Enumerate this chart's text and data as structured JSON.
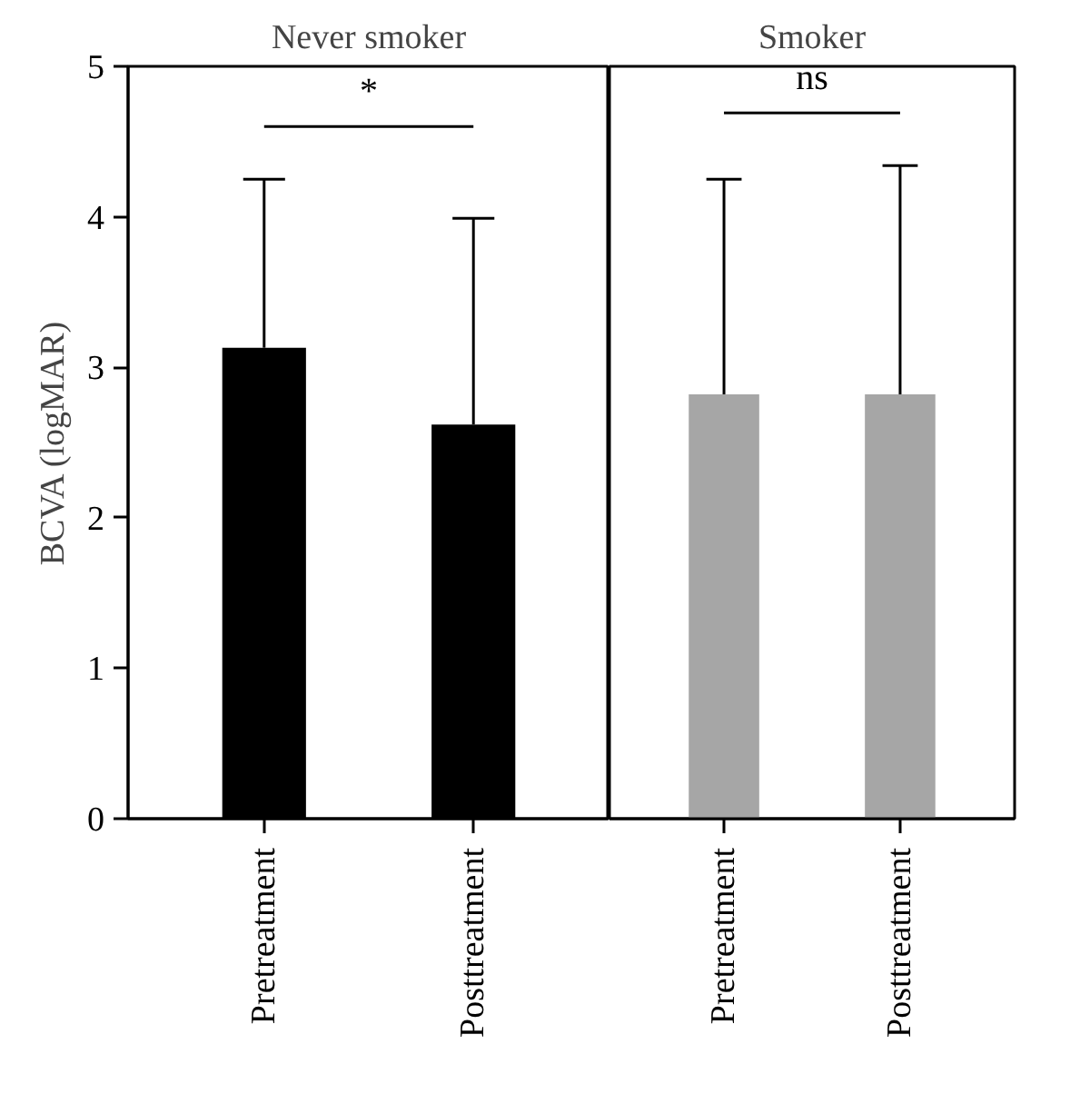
{
  "chart_data": [
    {
      "type": "bar",
      "title": "Never smoker",
      "ylabel": "BCVA (logMAR)",
      "categories": [
        "Pretreatment",
        "Posttreatment"
      ],
      "values": [
        3.13,
        2.62
      ],
      "color": "#000000",
      "errors": [
        [
          3.13,
          4.25
        ],
        [
          2.62,
          3.99
        ]
      ],
      "ylim": [
        0,
        5
      ],
      "yticks": [
        0,
        1,
        2,
        3,
        4,
        5
      ],
      "grid": false,
      "annotations": [
        "*"
      ]
    },
    {
      "type": "bar",
      "title": "Smoker",
      "categories": [
        "Pretreatment",
        "Posttreatment"
      ],
      "values": [
        2.82,
        2.82
      ],
      "color": "#a6a6a6",
      "errors": [
        [
          2.82,
          4.25
        ],
        [
          2.82,
          4.34
        ]
      ],
      "ylim": [
        0,
        5
      ],
      "yticks": [
        0,
        1,
        2,
        3,
        4,
        5
      ],
      "grid": false,
      "tick_labels": "x",
      "annotations": [
        "ns"
      ]
    }
  ]
}
